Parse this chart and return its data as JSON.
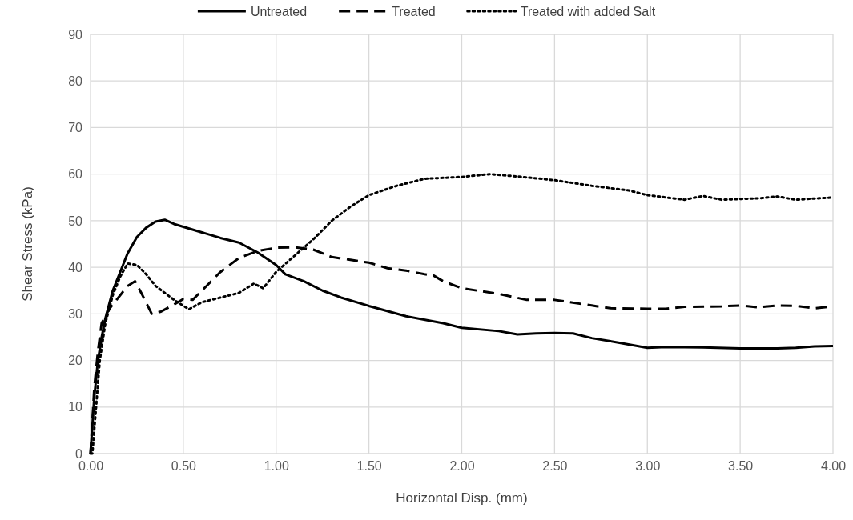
{
  "chart_data": {
    "type": "line",
    "xlabel": "Horizontal Disp. (mm)",
    "ylabel": "Shear Stress (kPa)",
    "xlim": [
      0,
      4
    ],
    "xticks": [
      {
        "value": 0,
        "label": "0.00"
      },
      {
        "value": 0.5,
        "label": "0.50"
      },
      {
        "value": 1,
        "label": "1.00"
      },
      {
        "value": 1.5,
        "label": "1.50"
      },
      {
        "value": 2,
        "label": "2.00"
      },
      {
        "value": 2.5,
        "label": "2.50"
      },
      {
        "value": 3,
        "label": "3.00"
      },
      {
        "value": 3.5,
        "label": "3.50"
      },
      {
        "value": 4,
        "label": "4.00"
      }
    ],
    "ylim": [
      0,
      90
    ],
    "yticks": [
      0,
      10,
      20,
      30,
      40,
      50,
      60,
      70,
      80,
      90
    ],
    "grid": true,
    "legend": "top",
    "marker": "none",
    "series": [
      {
        "name": "Untreated",
        "color": "#000000",
        "line_style": "solid",
        "x": [
          0,
          0.02,
          0.04,
          0.06,
          0.08,
          0.12,
          0.16,
          0.2,
          0.25,
          0.3,
          0.35,
          0.4,
          0.45,
          0.5,
          0.6,
          0.7,
          0.8,
          0.9,
          1.0,
          1.05,
          1.15,
          1.25,
          1.35,
          1.5,
          1.7,
          1.9,
          2.0,
          2.2,
          2.3,
          2.4,
          2.5,
          2.6,
          2.7,
          2.85,
          3.0,
          3.1,
          3.3,
          3.5,
          3.7,
          3.8,
          3.9,
          4.0
        ],
        "values": [
          0,
          12,
          20,
          25,
          29,
          35,
          39,
          43,
          46.5,
          48.5,
          49.8,
          50.2,
          49.3,
          48.7,
          47.5,
          46.3,
          45.3,
          43.2,
          40.5,
          38.5,
          37,
          35,
          33.5,
          31.7,
          29.5,
          28,
          27,
          26.3,
          25.6,
          25.8,
          25.9,
          25.8,
          24.8,
          23.8,
          22.7,
          22.9,
          22.8,
          22.6,
          22.6,
          22.7,
          23,
          23.1
        ]
      },
      {
        "name": "Treated",
        "color": "#000000",
        "line_style": "dashed",
        "x": [
          0,
          0.02,
          0.04,
          0.06,
          0.1,
          0.15,
          0.2,
          0.24,
          0.28,
          0.33,
          0.38,
          0.45,
          0.5,
          0.55,
          0.6,
          0.7,
          0.8,
          0.9,
          1.0,
          1.1,
          1.2,
          1.3,
          1.4,
          1.5,
          1.6,
          1.7,
          1.8,
          1.85,
          1.9,
          2.0,
          2.2,
          2.35,
          2.5,
          2.7,
          2.8,
          3.0,
          3.1,
          3.2,
          3.4,
          3.5,
          3.6,
          3.7,
          3.8,
          3.9,
          4.0
        ],
        "values": [
          0,
          14,
          22,
          28,
          31,
          33.5,
          36,
          37,
          34,
          30,
          30.5,
          32,
          33.2,
          33,
          35,
          39,
          42,
          43.5,
          44.2,
          44.3,
          43.8,
          42.2,
          41.6,
          41,
          39.8,
          39.3,
          38.5,
          38.2,
          37,
          35.5,
          34.3,
          33,
          33,
          31.8,
          31.2,
          31.1,
          31.1,
          31.5,
          31.6,
          31.8,
          31.4,
          31.8,
          31.7,
          31.2,
          31.6
        ]
      },
      {
        "name": "Treated with added Salt",
        "color": "#000000",
        "line_style": "dotted",
        "x": [
          0,
          0.01,
          0.03,
          0.05,
          0.08,
          0.12,
          0.16,
          0.2,
          0.25,
          0.3,
          0.35,
          0.45,
          0.53,
          0.6,
          0.7,
          0.8,
          0.88,
          0.93,
          1.0,
          1.1,
          1.2,
          1.3,
          1.4,
          1.5,
          1.65,
          1.8,
          2.0,
          2.15,
          2.3,
          2.5,
          2.7,
          2.9,
          3.0,
          3.2,
          3.3,
          3.4,
          3.6,
          3.7,
          3.8,
          4.0
        ],
        "values": [
          0,
          0,
          10,
          20,
          28,
          34,
          38,
          40.8,
          40.5,
          38.5,
          36,
          33,
          31,
          32.5,
          33.5,
          34.5,
          36.5,
          35.5,
          39,
          42.5,
          46,
          50,
          53,
          55.5,
          57.5,
          59,
          59.4,
          60,
          59.5,
          58.7,
          57.5,
          56.5,
          55.5,
          54.5,
          55.3,
          54.5,
          54.8,
          55.2,
          54.5,
          55
        ]
      }
    ]
  }
}
